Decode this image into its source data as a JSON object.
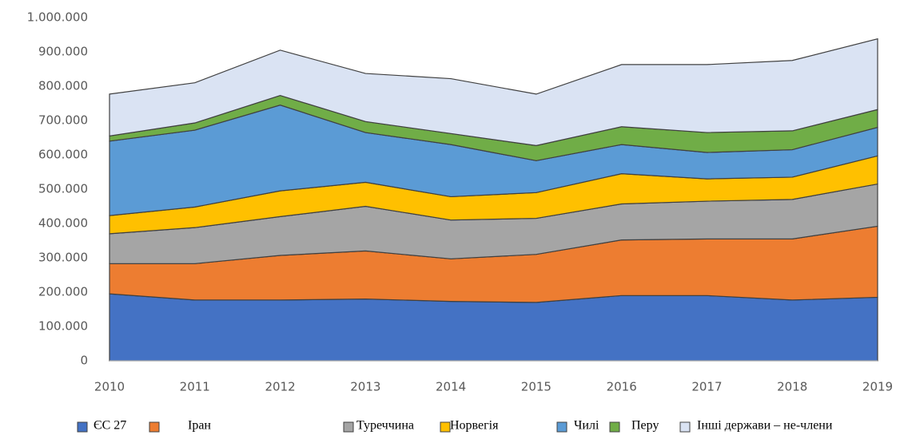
{
  "chart_data": {
    "type": "stacked_area",
    "categories": [
      "2010",
      "2011",
      "2012",
      "2013",
      "2014",
      "2015",
      "2016",
      "2017",
      "2018",
      "2019"
    ],
    "series": [
      {
        "name": "ЄС 27",
        "color": "#4472c4",
        "values": [
          195000,
          177000,
          177000,
          180000,
          173000,
          170000,
          190000,
          190000,
          177000,
          185000
        ]
      },
      {
        "name": "Іран",
        "color": "#ed7d31",
        "values": [
          88000,
          106000,
          130000,
          140000,
          124000,
          140000,
          162000,
          165000,
          178000,
          207000
        ]
      },
      {
        "name": "Туреччина",
        "color": "#a5a5a5",
        "values": [
          87000,
          105000,
          113000,
          130000,
          113000,
          105000,
          105000,
          110000,
          115000,
          123000
        ]
      },
      {
        "name": "Норвегія",
        "color": "#ffc000",
        "values": [
          53000,
          60000,
          75000,
          70000,
          68000,
          75000,
          88000,
          65000,
          65000,
          82000
        ]
      },
      {
        "name": "Чилі",
        "color": "#5b9bd5",
        "values": [
          217000,
          224000,
          250000,
          145000,
          152000,
          93000,
          85000,
          77000,
          80000,
          83000
        ]
      },
      {
        "name": "Перу",
        "color": "#70ad47",
        "values": [
          15000,
          21000,
          28000,
          32000,
          32000,
          44000,
          52000,
          58000,
          55000,
          52000
        ]
      },
      {
        "name": "Інші держави – не-члени",
        "color": "#dae3f3",
        "values": [
          122000,
          117000,
          132000,
          140000,
          160000,
          150000,
          181000,
          198000,
          205000,
          206000
        ]
      }
    ],
    "ylim": [
      0,
      1000000
    ],
    "yticks": [
      0,
      {
        "value": 100000,
        "label": "100.000"
      },
      {
        "value": 200000,
        "label": "200.000"
      },
      {
        "value": 300000,
        "label": "300.000"
      },
      {
        "value": 400000,
        "label": "400.000"
      },
      {
        "value": 500000,
        "label": "500.000"
      },
      {
        "value": 600000,
        "label": "600.000"
      },
      {
        "value": 700000,
        "label": "700.000"
      },
      {
        "value": 800000,
        "label": "800.000"
      },
      {
        "value": 900000,
        "label": "900.000"
      },
      {
        "value": 1000000,
        "label": "1.000.000"
      }
    ],
    "legend": "bottom"
  }
}
